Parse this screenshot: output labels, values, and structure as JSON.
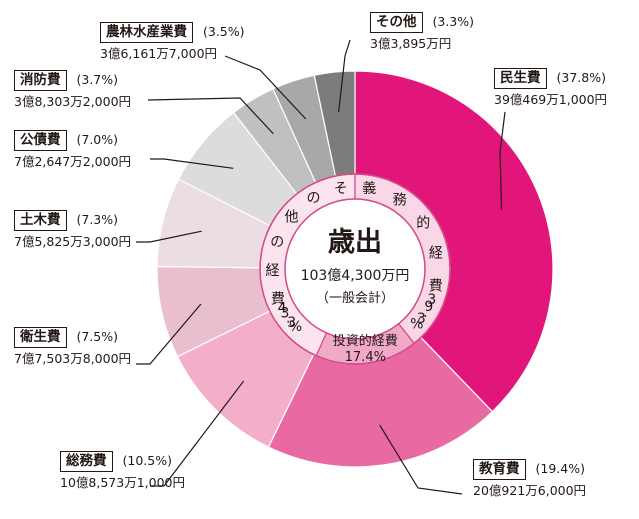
{
  "chart_data": {
    "type": "pie",
    "title": "歳出",
    "center_amount": "103億4,300万円",
    "center_note": "（一般会計）",
    "slices": [
      {
        "label": "民生費",
        "percent_text": "(37.8%)",
        "amount": "39億469万1,000円",
        "value": 37.8,
        "color": "#e2157a"
      },
      {
        "label": "教育費",
        "percent_text": "(19.4%)",
        "amount": "20億921万6,000円",
        "value": 19.4,
        "color": "#e96aa3"
      },
      {
        "label": "総務費",
        "percent_text": "(10.5%)",
        "amount": "10億8,573万1,000円",
        "value": 10.5,
        "color": "#f3aeca"
      },
      {
        "label": "衛生費",
        "percent_text": "(7.5%)",
        "amount": "7億7,503万8,000円",
        "value": 7.5,
        "color": "#e9bfcf"
      },
      {
        "label": "土木費",
        "percent_text": "(7.3%)",
        "amount": "7億5,825万3,000円",
        "value": 7.3,
        "color": "#ecdde3"
      },
      {
        "label": "公債費",
        "percent_text": "(7.0%)",
        "amount": "7億2,647万2,000円",
        "value": 7.0,
        "color": "#dcdcdc"
      },
      {
        "label": "消防費",
        "percent_text": "(3.7%)",
        "amount": "3億8,303万2,000円",
        "value": 3.7,
        "color": "#c0c0c0"
      },
      {
        "label": "農林水産業費",
        "percent_text": "(3.5%)",
        "amount": "3億6,161万7,000円",
        "value": 3.5,
        "color": "#a8a8a8"
      },
      {
        "label": "その他",
        "percent_text": "(3.3%)",
        "amount": "3億3,895万円",
        "value": 3.3,
        "color": "#7c7c7c"
      }
    ],
    "inner_ring": [
      {
        "label": "義務的経費",
        "percent": "39.3%",
        "value": 39.3,
        "color": "#f9d7e6"
      },
      {
        "label": "投資的経費",
        "percent": "17.4%",
        "value": 17.4,
        "color": "#f1a9c8"
      },
      {
        "label": "その他の経費",
        "percent": "43.3%",
        "value": 43.3,
        "color": "#fbe4ee"
      }
    ]
  }
}
